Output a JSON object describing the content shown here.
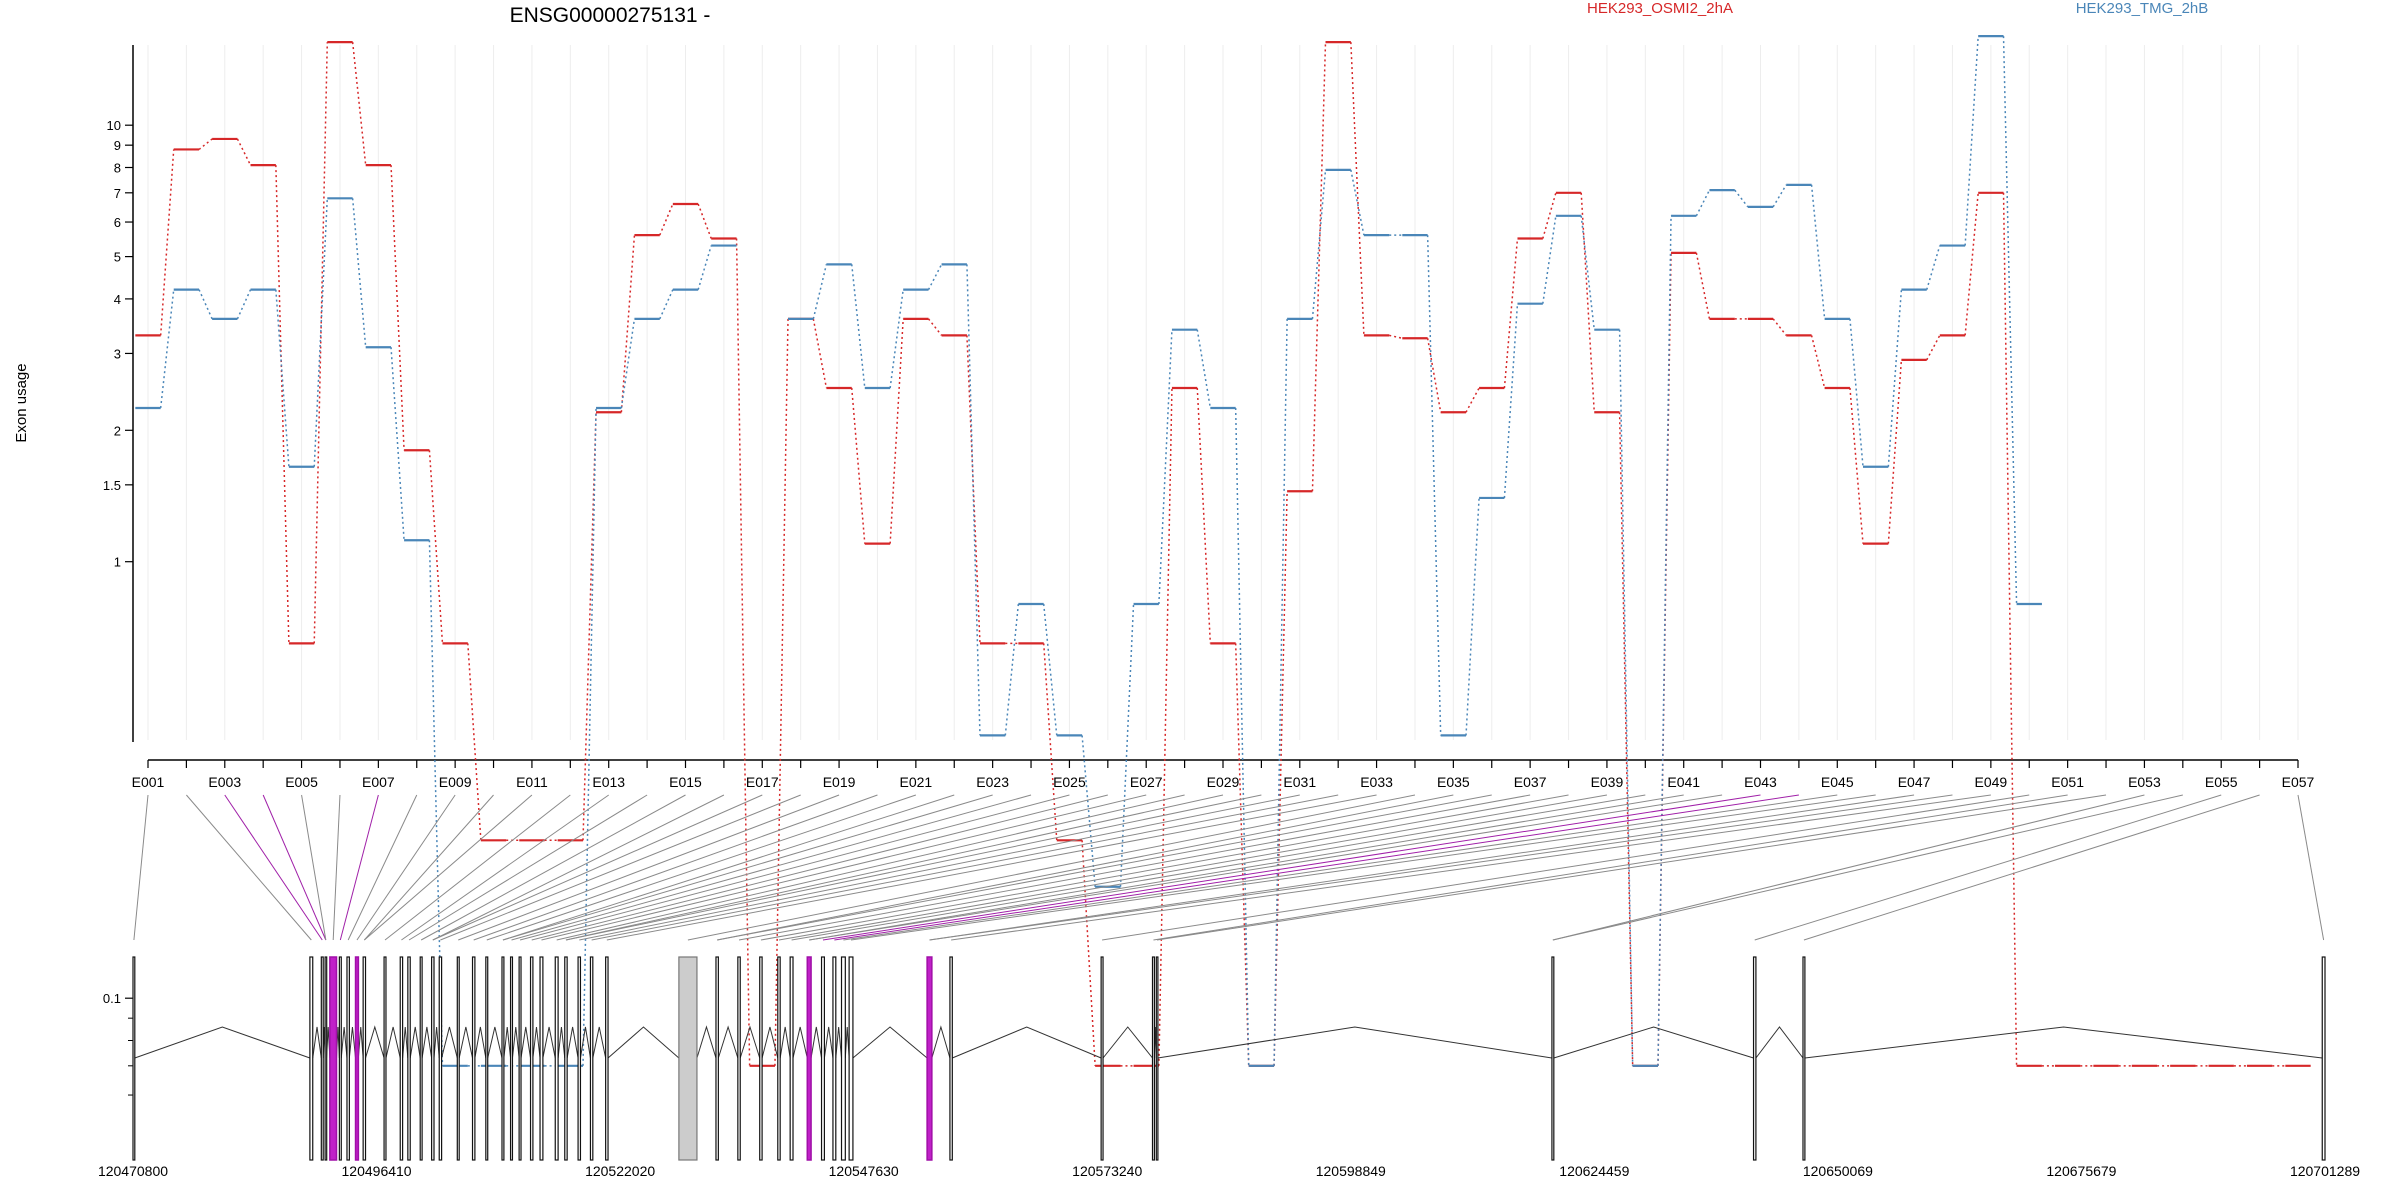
{
  "chart_data": {
    "type": "line",
    "title": "ENSG00000275131 -",
    "ylabel": "Exon usage",
    "y_scale": "log",
    "yticks": [
      0.1,
      1,
      1.5,
      2,
      3,
      4,
      5,
      6,
      7,
      8,
      9,
      10
    ],
    "ytick_labels": [
      "0.1",
      "1",
      "1.5",
      "2",
      "3",
      "4",
      "5",
      "6",
      "7",
      "8",
      "9",
      "10"
    ],
    "legend_placement": "top",
    "grid": "vertical lines at each exon",
    "categories": [
      "E001",
      "E002",
      "E003",
      "E004",
      "E005",
      "E006",
      "E007",
      "E008",
      "E009",
      "E010",
      "E011",
      "E012",
      "E013",
      "E014",
      "E015",
      "E016",
      "E017",
      "E018",
      "E019",
      "E020",
      "E021",
      "E022",
      "E023",
      "E024",
      "E025",
      "E026",
      "E027",
      "E028",
      "E029",
      "E030",
      "E031",
      "E032",
      "E033",
      "E034",
      "E035",
      "E036",
      "E037",
      "E038",
      "E039",
      "E040",
      "E041",
      "E042",
      "E043",
      "E044",
      "E045",
      "E046",
      "E047",
      "E048",
      "E049",
      "E050",
      "E051",
      "E052",
      "E053",
      "E054",
      "E055",
      "E056",
      "E057"
    ],
    "xtick_labels": [
      "E001",
      "E003",
      "E005",
      "E007",
      "E009",
      "E011",
      "E013",
      "E015",
      "E017",
      "E019",
      "E021",
      "E023",
      "E025",
      "E027",
      "E029",
      "E031",
      "E033",
      "E035",
      "E037",
      "E039",
      "E041",
      "E043",
      "E045",
      "E047",
      "E049",
      "E051",
      "E053",
      "E055",
      "E057"
    ],
    "series": [
      {
        "name": "HEK293_OSMI2_2hA",
        "color": "#d62728",
        "values": [
          3.3,
          8.8,
          9.3,
          8.1,
          0.65,
          15.5,
          8.1,
          1.8,
          0.65,
          0.23,
          0.23,
          0.23,
          2.2,
          5.6,
          6.6,
          5.5,
          0.07,
          3.6,
          2.5,
          1.1,
          3.6,
          3.3,
          0.65,
          0.65,
          0.23,
          0.07,
          0.07,
          2.5,
          0.65,
          0.07,
          1.45,
          15.5,
          3.3,
          3.25,
          2.2,
          2.5,
          5.5,
          7.0,
          2.2,
          0.07,
          5.1,
          3.6,
          3.6,
          3.3,
          2.5,
          1.1,
          2.9,
          3.3,
          7.0,
          0.07,
          0.07,
          0.07,
          0.07,
          0.07,
          0.07,
          0.07,
          0.07
        ]
      },
      {
        "name": "HEK293_TMG_2hB",
        "color": "#4a86b8",
        "values": [
          2.25,
          4.2,
          3.6,
          4.2,
          1.65,
          6.8,
          3.1,
          1.12,
          0.07,
          0.07,
          0.07,
          0.07,
          2.25,
          3.6,
          4.2,
          5.3,
          null,
          3.6,
          4.8,
          2.5,
          4.2,
          4.8,
          0.4,
          0.8,
          0.4,
          0.18,
          0.8,
          3.4,
          2.25,
          0.07,
          3.6,
          7.9,
          5.6,
          5.6,
          0.4,
          1.4,
          3.9,
          6.2,
          3.4,
          0.07,
          6.2,
          7.1,
          6.5,
          7.3,
          3.6,
          1.65,
          4.2,
          5.3,
          16.0,
          0.8,
          null,
          null,
          null,
          null,
          null,
          null,
          null
        ]
      }
    ],
    "genomic_coordinates": [
      "120470800",
      "120496410",
      "120522020",
      "120547630",
      "120573240",
      "120598849",
      "120624459",
      "120650069",
      "120675679",
      "120701289"
    ],
    "highlighted_exons": [
      "E003",
      "E004",
      "E007",
      "E043",
      "E044"
    ],
    "gene_model": {
      "exons": [
        [
          120470800,
          120470990
        ],
        [
          120489400,
          120489700
        ],
        [
          120490600,
          120490800
        ],
        [
          120491000,
          120491150
        ],
        [
          120491500,
          120492200
        ],
        [
          120492500,
          120492700
        ],
        [
          120493300,
          120493550
        ],
        [
          120494200,
          120494500
        ],
        [
          120495000,
          120495250
        ],
        [
          120497200,
          120497400
        ],
        [
          120498900,
          120499150
        ],
        [
          120499700,
          120499950
        ],
        [
          120501000,
          120501200
        ],
        [
          120502200,
          120502450
        ],
        [
          120503000,
          120503250
        ],
        [
          120504900,
          120505100
        ],
        [
          120506500,
          120506750
        ],
        [
          120507900,
          120508100
        ],
        [
          120509600,
          120509800
        ],
        [
          120510500,
          120510700
        ],
        [
          120511400,
          120511600
        ],
        [
          120512600,
          120512850
        ],
        [
          120513600,
          120513900
        ],
        [
          120515200,
          120515500
        ],
        [
          120516200,
          120516450
        ],
        [
          120517600,
          120517850
        ],
        [
          120518900,
          120519150
        ],
        [
          120520500,
          120520750
        ],
        [
          120528200,
          120530100
        ],
        [
          120532100,
          120532350
        ],
        [
          120534400,
          120534650
        ],
        [
          120536700,
          120536950
        ],
        [
          120538600,
          120538850
        ],
        [
          120539900,
          120540200
        ],
        [
          120541700,
          120542100
        ],
        [
          120543200,
          120543500
        ],
        [
          120544400,
          120544700
        ],
        [
          120545300,
          120545700
        ],
        [
          120546100,
          120546500
        ],
        [
          120554300,
          120554800
        ],
        [
          120556700,
          120556950
        ],
        [
          120572600,
          120572800
        ],
        [
          120578000,
          120578200
        ],
        [
          120578400,
          120578550
        ],
        [
          120620000,
          120620200
        ],
        [
          120641200,
          120641450
        ],
        [
          120646400,
          120646600
        ],
        [
          120701000,
          120701289
        ]
      ],
      "highlighted": [
        [
          120491500,
          120492200
        ],
        [
          120494200,
          120494500
        ],
        [
          120541700,
          120542100
        ],
        [
          120554300,
          120554800
        ]
      ],
      "shaded": [
        [
          120528200,
          120530100
        ]
      ]
    }
  }
}
